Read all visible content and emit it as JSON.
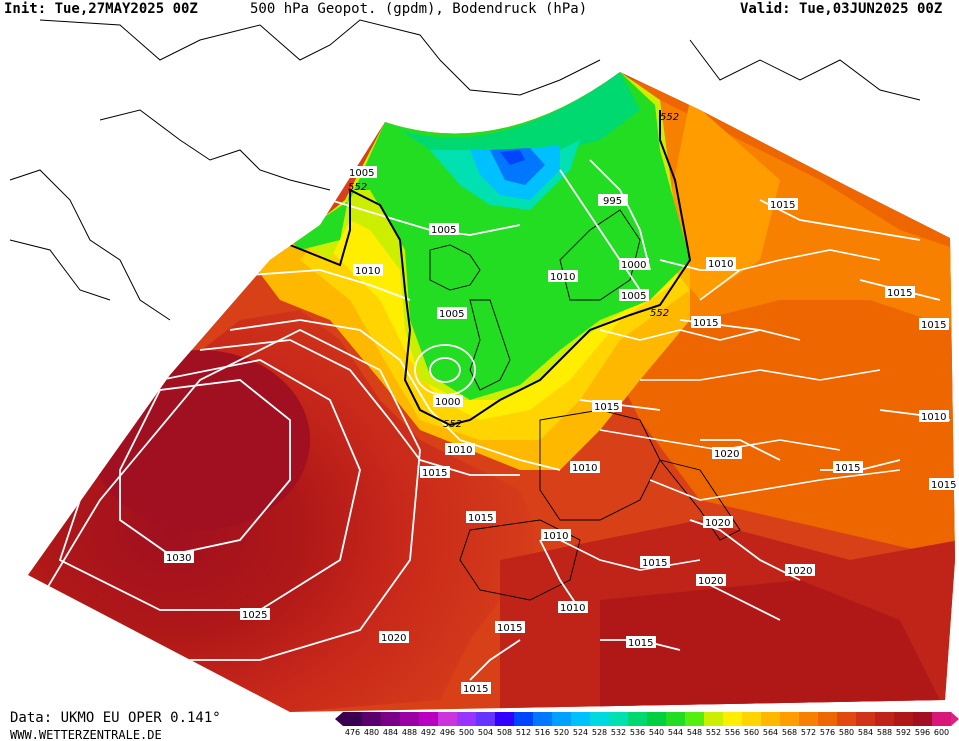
{
  "header": {
    "init": "Init: Tue,27MAY2025 00Z",
    "title": "500 hPa Geopot. (gpdm), Bodendruck (hPa)",
    "valid": "Valid: Tue,03JUN2025 00Z"
  },
  "footer": {
    "source": "Data: UKMO EU OPER 0.141°",
    "website": "WWW.WETTERZENTRALE.DE"
  },
  "colorbar": {
    "labels": [
      "476",
      "480",
      "484",
      "488",
      "492",
      "496",
      "500",
      "504",
      "508",
      "512",
      "516",
      "520",
      "524",
      "528",
      "532",
      "536",
      "540",
      "544",
      "548",
      "552",
      "556",
      "560",
      "564",
      "568",
      "572",
      "576",
      "580",
      "584",
      "588",
      "592",
      "596",
      "600"
    ],
    "colors": [
      "#3a0050",
      "#5a006e",
      "#7a0088",
      "#9a00a4",
      "#b800c0",
      "#cc33dd",
      "#9933ff",
      "#6633ff",
      "#3300ff",
      "#0044ff",
      "#0077ff",
      "#00a0ff",
      "#00c0ff",
      "#00d8e0",
      "#00e0b0",
      "#00d870",
      "#00d040",
      "#22dd22",
      "#55ee11",
      "#ccee00",
      "#ffee00",
      "#ffd400",
      "#ffb800",
      "#ff9c00",
      "#f78000",
      "#ee6600",
      "#e04a10",
      "#d03418",
      "#c02418",
      "#b01818",
      "#a01020",
      "#d81878"
    ],
    "end_color": "#e0207e"
  },
  "isobars": [
    "1005",
    "1005",
    "1010",
    "1010",
    "1015",
    "1015",
    "1005",
    "1010",
    "1000",
    "1010",
    "1005",
    "1015",
    "1015",
    "1015",
    "1005",
    "995",
    "1000",
    "1015",
    "1010",
    "1010",
    "1015",
    "1015",
    "1010",
    "1020",
    "1020",
    "1020",
    "1030",
    "1025",
    "1020",
    "1015",
    "1015",
    "1010",
    "1015",
    "1020",
    "1015",
    "1015",
    "1010",
    "1015",
    "1010"
  ],
  "gpdm_labels": [
    "552",
    "552",
    "552",
    "552"
  ]
}
